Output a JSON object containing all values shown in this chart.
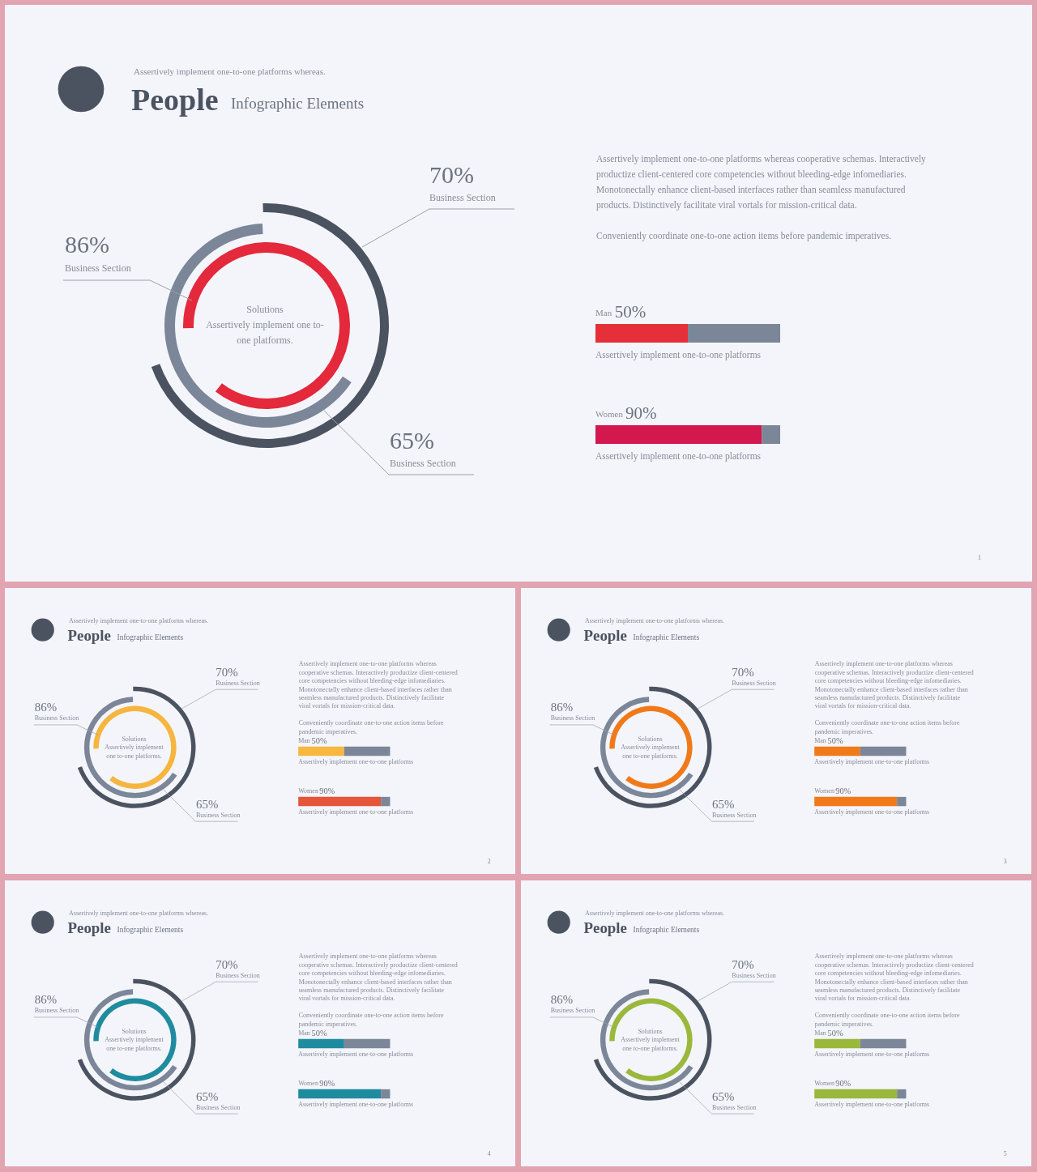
{
  "chart_data": [
    {
      "type": "other",
      "title": "People",
      "subtitle": "Infographic Elements",
      "categories": [
        "Business Section",
        "Business Section",
        "Business Section"
      ],
      "values": [
        70,
        65,
        86
      ],
      "value_labels": [
        "70%",
        "65%",
        "86%"
      ],
      "colors": [
        "#4b5361",
        "#7b8699",
        "#e3293b"
      ],
      "annotations": [
        "Assertively implement one-to-one platforms whereas.",
        "Solutions",
        "Assertively implement one to-one platforms.",
        "Assertively implement one-to-one platforms whereas cooperative schemas. Interactively productize client-centered core competencies without bleeding-edge infomediaries. Monotonectally enhance client-based interfaces rather than seamless manufactured products. Distinctively facilitate viral vortals for mission-critical data.",
        "Conveniently coordinate one-to-one action items before pandemic imperatives.",
        "1"
      ]
    },
    {
      "type": "bar",
      "orientation": "horizontal",
      "stacked": true,
      "categories": [
        "Man",
        "Women"
      ],
      "tick_labels": false,
      "series": [
        {
          "colors": [
            "#e53039",
            "#d3184f"
          ],
          "values": [
            50,
            90
          ],
          "value_labels": [
            "50%",
            "90%"
          ]
        },
        {
          "color": "#7b8699",
          "values": [
            50,
            10
          ]
        }
      ],
      "annotations": [
        "Assertively implement one-to-one platforms",
        "Assertively implement one-to-one platforms"
      ]
    },
    {
      "type": "other",
      "title": "People",
      "subtitle": "Infographic Elements",
      "categories": [
        "Business Section",
        "Business Section",
        "Business Section"
      ],
      "values": [
        70,
        65,
        86
      ],
      "value_labels": [
        "70%",
        "65%",
        "86%"
      ],
      "colors": [
        "#4b5361",
        "#7b8699",
        "#f6b53e"
      ],
      "annotations": [
        "Assertively implement one-to-one platforms whereas.",
        "Solutions",
        "Assertively implement one to-one platforms.",
        "Assertively implement one-to-one platforms whereas cooperative schemas. Interactively productize client-centered core competencies without bleeding-edge infomediaries. Monotonectally enhance client-based interfaces rather than seamless manufactured products. Distinctively facilitate viral vortals for mission-critical data.",
        "Conveniently coordinate one-to-one action items before pandemic imperatives.",
        "2"
      ]
    },
    {
      "type": "bar",
      "orientation": "horizontal",
      "stacked": true,
      "categories": [
        "Man",
        "Women"
      ],
      "tick_labels": false,
      "series": [
        {
          "colors": [
            "#f6b83e",
            "#e4553a"
          ],
          "values": [
            50,
            90
          ],
          "value_labels": [
            "50%",
            "90%"
          ]
        },
        {
          "color": "#7b8699",
          "values": [
            50,
            10
          ]
        }
      ],
      "annotations": [
        "Assertively implement one-to-one platforms",
        "Assertively implement one-to-one platforms"
      ]
    },
    {
      "type": "other",
      "title": "People",
      "subtitle": "Infographic Elements",
      "categories": [
        "Business Section",
        "Business Section",
        "Business Section"
      ],
      "values": [
        70,
        65,
        86
      ],
      "value_labels": [
        "70%",
        "65%",
        "86%"
      ],
      "colors": [
        "#4b5361",
        "#7b8699",
        "#f07a1a"
      ],
      "annotations": [
        "Assertively implement one-to-one platforms whereas.",
        "Solutions",
        "Assertively implement one to-one platforms.",
        "Assertively implement one-to-one platforms whereas cooperative schemas. Interactively productize client-centered core competencies without bleeding-edge infomediaries. Monotonectally enhance client-based interfaces rather than seamless manufactured products. Distinctively facilitate viral vortals for mission-critical data.",
        "Conveniently coordinate one-to-one action items before pandemic imperatives.",
        "3"
      ]
    },
    {
      "type": "bar",
      "orientation": "horizontal",
      "stacked": true,
      "categories": [
        "Man",
        "Women"
      ],
      "tick_labels": false,
      "series": [
        {
          "colors": [
            "#f07a1a",
            "#f07a1a"
          ],
          "values": [
            50,
            90
          ],
          "value_labels": [
            "50%",
            "90%"
          ]
        },
        {
          "color": "#7b8699",
          "values": [
            50,
            10
          ]
        }
      ],
      "annotations": [
        "Assertively implement one-to-one platforms",
        "Assertively implement one-to-one platforms"
      ]
    },
    {
      "type": "other",
      "title": "People",
      "subtitle": "Infographic Elements",
      "categories": [
        "Business Section",
        "Business Section",
        "Business Section"
      ],
      "values": [
        70,
        65,
        86
      ],
      "value_labels": [
        "70%",
        "65%",
        "86%"
      ],
      "colors": [
        "#4b5361",
        "#7b8699",
        "#1e8c9e"
      ],
      "annotations": [
        "Assertively implement one-to-one platforms whereas.",
        "Solutions",
        "Assertively implement one to-one platforms.",
        "Assertively implement one-to-one platforms whereas cooperative schemas. Interactively productize client-centered core competencies without bleeding-edge infomediaries. Monotonectally enhance client-based interfaces rather than seamless manufactured products. Distinctively facilitate viral vortals for mission-critical data.",
        "Conveniently coordinate one-to-one action items before pandemic imperatives.",
        "4"
      ]
    },
    {
      "type": "bar",
      "orientation": "horizontal",
      "stacked": true,
      "categories": [
        "Man",
        "Women"
      ],
      "tick_labels": false,
      "series": [
        {
          "colors": [
            "#1e8c9e",
            "#1e8c9e"
          ],
          "values": [
            50,
            90
          ],
          "value_labels": [
            "50%",
            "90%"
          ]
        },
        {
          "color": "#7b8699",
          "values": [
            50,
            10
          ]
        }
      ],
      "annotations": [
        "Assertively implement one-to-one platforms",
        "Assertively implement one-to-one platforms"
      ]
    },
    {
      "type": "other",
      "title": "People",
      "subtitle": "Infographic Elements",
      "categories": [
        "Business Section",
        "Business Section",
        "Business Section"
      ],
      "values": [
        70,
        65,
        86
      ],
      "value_labels": [
        "70%",
        "65%",
        "86%"
      ],
      "colors": [
        "#4b5361",
        "#7b8699",
        "#9ab83c"
      ],
      "annotations": [
        "Assertively implement one-to-one platforms whereas.",
        "Solutions",
        "Assertively implement one to-one platforms.",
        "Assertively implement one-to-one platforms whereas cooperative schemas. Interactively productize client-centered core competencies without bleeding-edge infomediaries. Monotonectally enhance client-based interfaces rather than seamless manufactured products. Distinctively facilitate viral vortals for mission-critical data.",
        "Conveniently coordinate one-to-one action items before pandemic imperatives.",
        "5"
      ]
    },
    {
      "type": "bar",
      "orientation": "horizontal",
      "stacked": true,
      "categories": [
        "Man",
        "Women"
      ],
      "tick_labels": false,
      "series": [
        {
          "colors": [
            "#9ab83c",
            "#9ab83c"
          ],
          "values": [
            50,
            90
          ],
          "value_labels": [
            "50%",
            "90%"
          ]
        },
        {
          "color": "#7b8699",
          "values": [
            50,
            10
          ]
        }
      ],
      "annotations": [
        "Assertively implement one-to-one platforms",
        "Assertively implement one-to-one platforms"
      ]
    }
  ]
}
